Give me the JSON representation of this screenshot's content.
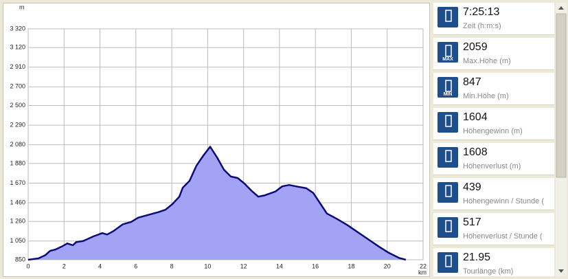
{
  "chart_data": {
    "type": "line",
    "y_unit": "m",
    "x_unit": "km",
    "color": "#0a0a78",
    "fill": "#a3a3f5",
    "x": [
      0,
      0.57,
      0.96,
      1.22,
      1.53,
      1.91,
      2.18,
      2.49,
      2.68,
      3.06,
      3.63,
      4.13,
      4.4,
      4.78,
      5.28,
      5.74,
      6.12,
      6.69,
      7.27,
      7.65,
      8.03,
      8.42,
      8.61,
      8.99,
      9.37,
      9.76,
      10.14,
      10.52,
      10.9,
      11.29,
      11.67,
      12.05,
      12.43,
      12.82,
      13.2,
      13.77,
      14.15,
      14.54,
      14.92,
      15.49,
      15.88,
      16.26,
      16.64,
      17.22,
      17.79,
      18.36,
      18.94,
      19.51,
      20.08,
      20.66,
      21.04
    ],
    "values": [
      850,
      865,
      900,
      945,
      960,
      995,
      1025,
      1005,
      1040,
      1050,
      1100,
      1135,
      1120,
      1160,
      1230,
      1255,
      1300,
      1330,
      1360,
      1385,
      1445,
      1525,
      1620,
      1695,
      1855,
      1965,
      2059,
      1945,
      1815,
      1740,
      1725,
      1665,
      1590,
      1525,
      1540,
      1580,
      1635,
      1650,
      1635,
      1615,
      1565,
      1455,
      1345,
      1285,
      1220,
      1145,
      1070,
      995,
      925,
      870,
      850
    ],
    "xlim": [
      0,
      22
    ],
    "xticks": [
      0,
      2,
      4,
      6,
      8,
      10,
      12,
      14,
      16,
      18,
      20,
      22
    ],
    "ylim": [
      850,
      3320
    ],
    "yticks": [
      850,
      {
        "value": 1050,
        "label": "1 050"
      },
      {
        "value": 1260,
        "label": "1 260"
      },
      {
        "value": 1460,
        "label": "1 460"
      },
      {
        "value": 1670,
        "label": "1 670"
      },
      {
        "value": 1880,
        "label": "1 880"
      },
      {
        "value": 2080,
        "label": "2 080"
      },
      {
        "value": 2290,
        "label": "2 290"
      },
      {
        "value": 2500,
        "label": "2 500"
      },
      {
        "value": 2700,
        "label": "2 700"
      },
      {
        "value": 2910,
        "label": "2 910"
      },
      {
        "value": 3120,
        "label": "3 120"
      },
      {
        "value": 3320,
        "label": "3 320"
      }
    ],
    "grid": true
  },
  "stats": [
    {
      "value": "7:25:13",
      "label": "Zeit (h:m:s)"
    },
    {
      "value": "2059",
      "label": "Max.Höhe (m)",
      "icon_text": "MAX"
    },
    {
      "value": "847",
      "label": "Min.Höhe (m)",
      "icon_text": "MIN"
    },
    {
      "value": "1604",
      "label": "Höhengewinn (m)"
    },
    {
      "value": "1608",
      "label": "Höhenverlust (m)"
    },
    {
      "value": "439",
      "label": "Höhengewinn  /  Stunde ("
    },
    {
      "value": "517",
      "label": "Höhenverlust  /  Stunde ("
    },
    {
      "value": "21.95",
      "label": "Tourlänge (km)"
    }
  ]
}
